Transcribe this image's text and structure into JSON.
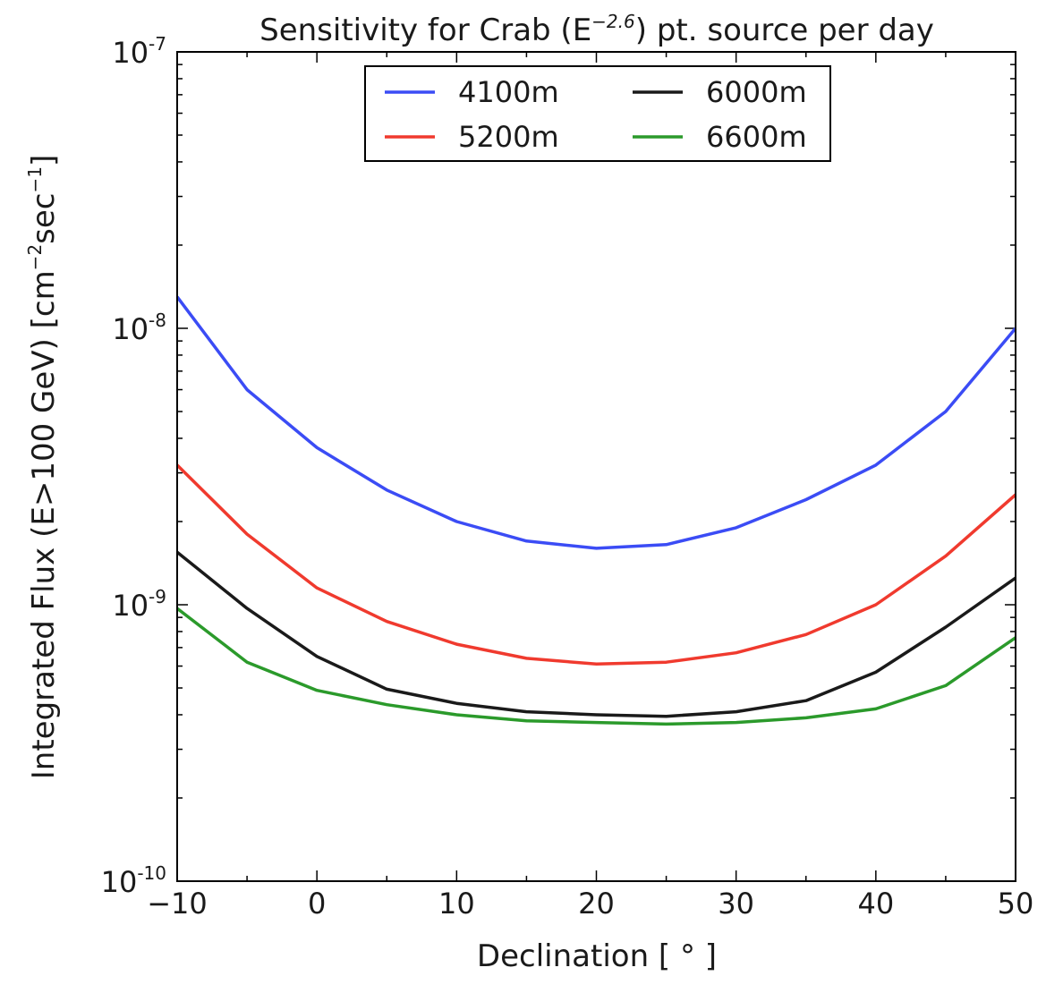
{
  "chart_data": {
    "type": "line",
    "title": {
      "prefix": "Sensitivity for Crab (E",
      "exponent": "−2.6",
      "suffix": ") pt. source per day"
    },
    "xlabel": "Declination [ ° ]",
    "ylabel": {
      "text": "Integrated Flux (E>100 GeV) [cm",
      "exp1": "−2",
      "mid": "sec",
      "exp2": "−1",
      "end": "]"
    },
    "xlim": [
      -10,
      50
    ],
    "ylim": [
      1e-10,
      1e-07
    ],
    "yscale": "log",
    "x": [
      -10,
      -5,
      0,
      5,
      10,
      15,
      20,
      25,
      30,
      35,
      40,
      45,
      50
    ],
    "xtick_values": [
      -10,
      0,
      10,
      20,
      30,
      40,
      50
    ],
    "xtick_labels": [
      "−10",
      "0",
      "10",
      "20",
      "30",
      "40",
      "50"
    ],
    "ytick_labels": [
      {
        "value": 1e-07,
        "base": "10",
        "exp": "-7"
      },
      {
        "value": 1e-08,
        "base": "10",
        "exp": "-8"
      },
      {
        "value": 1e-09,
        "base": "10",
        "exp": "-9"
      },
      {
        "value": 1e-10,
        "base": "10",
        "exp": "-10"
      }
    ],
    "legend_position": "top-center",
    "series": [
      {
        "name": "4100m",
        "color": "#3b4cf5",
        "values": [
          1.3e-08,
          6e-09,
          3.7e-09,
          2.6e-09,
          2e-09,
          1.7e-09,
          1.6e-09,
          1.65e-09,
          1.9e-09,
          2.4e-09,
          3.2e-09,
          5e-09,
          1e-08
        ]
      },
      {
        "name": "5200m",
        "color": "#f03a2e",
        "values": [
          3.2e-09,
          1.8e-09,
          1.15e-09,
          8.7e-10,
          7.2e-10,
          6.4e-10,
          6.1e-10,
          6.2e-10,
          6.7e-10,
          7.8e-10,
          1e-09,
          1.5e-09,
          2.5e-09
        ]
      },
      {
        "name": "6000m",
        "color": "#1a1a1a",
        "values": [
          1.55e-09,
          9.7e-10,
          6.5e-10,
          4.95e-10,
          4.4e-10,
          4.1e-10,
          4e-10,
          3.95e-10,
          4.1e-10,
          4.5e-10,
          5.7e-10,
          8.3e-10,
          1.25e-09
        ]
      },
      {
        "name": "6600m",
        "color": "#2b9a2b",
        "values": [
          9.7e-10,
          6.2e-10,
          4.9e-10,
          4.35e-10,
          4e-10,
          3.8e-10,
          3.75e-10,
          3.7e-10,
          3.75e-10,
          3.9e-10,
          4.2e-10,
          5.1e-10,
          7.6e-10
        ]
      }
    ]
  }
}
